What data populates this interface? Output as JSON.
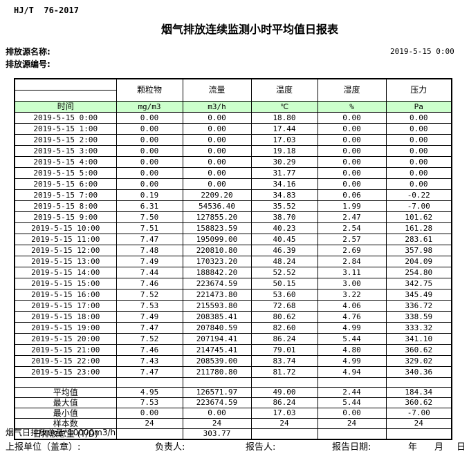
{
  "page": {
    "standard": "HJ/T  76-2017",
    "title": "烟气排放连续监测小时平均值日报表",
    "source_name_label": "排放源名称:",
    "source_code_label": "排放源编号:",
    "datetime": "2019-5-15 0:00"
  },
  "table": {
    "time_header": "时间",
    "columns": [
      {
        "name": "颗粒物",
        "unit": "mg/m3"
      },
      {
        "name": "流量",
        "unit": "m3/h"
      },
      {
        "name": "温度",
        "unit": "℃"
      },
      {
        "name": "湿度",
        "unit": "%"
      },
      {
        "name": "压力",
        "unit": "Pa"
      }
    ],
    "rows": [
      {
        "time": "2019-5-15 0:00",
        "values": [
          "0.00",
          "0.00",
          "18.80",
          "0.00",
          "0.00"
        ]
      },
      {
        "time": "2019-5-15 1:00",
        "values": [
          "0.00",
          "0.00",
          "17.44",
          "0.00",
          "0.00"
        ]
      },
      {
        "time": "2019-5-15 2:00",
        "values": [
          "0.00",
          "0.00",
          "17.03",
          "0.00",
          "0.00"
        ]
      },
      {
        "time": "2019-5-15 3:00",
        "values": [
          "0.00",
          "0.00",
          "19.18",
          "0.00",
          "0.00"
        ]
      },
      {
        "time": "2019-5-15 4:00",
        "values": [
          "0.00",
          "0.00",
          "30.29",
          "0.00",
          "0.00"
        ]
      },
      {
        "time": "2019-5-15 5:00",
        "values": [
          "0.00",
          "0.00",
          "31.77",
          "0.00",
          "0.00"
        ]
      },
      {
        "time": "2019-5-15 6:00",
        "values": [
          "0.00",
          "0.00",
          "34.16",
          "0.00",
          "0.00"
        ]
      },
      {
        "time": "2019-5-15 7:00",
        "values": [
          "0.19",
          "2209.20",
          "34.83",
          "0.06",
          "-0.22"
        ]
      },
      {
        "time": "2019-5-15 8:00",
        "values": [
          "6.31",
          "54536.40",
          "35.52",
          "1.99",
          "-7.00"
        ]
      },
      {
        "time": "2019-5-15 9:00",
        "values": [
          "7.50",
          "127855.20",
          "38.70",
          "2.47",
          "101.62"
        ]
      },
      {
        "time": "2019-5-15 10:00",
        "values": [
          "7.51",
          "158823.59",
          "40.23",
          "2.54",
          "161.28"
        ]
      },
      {
        "time": "2019-5-15 11:00",
        "values": [
          "7.47",
          "195099.00",
          "40.45",
          "2.57",
          "283.61"
        ]
      },
      {
        "time": "2019-5-15 12:00",
        "values": [
          "7.48",
          "220810.80",
          "46.39",
          "2.69",
          "357.98"
        ]
      },
      {
        "time": "2019-5-15 13:00",
        "values": [
          "7.49",
          "170323.20",
          "48.24",
          "2.84",
          "204.09"
        ]
      },
      {
        "time": "2019-5-15 14:00",
        "values": [
          "7.44",
          "188842.20",
          "52.52",
          "3.11",
          "254.80"
        ]
      },
      {
        "time": "2019-5-15 15:00",
        "values": [
          "7.46",
          "223674.59",
          "50.15",
          "3.00",
          "342.75"
        ]
      },
      {
        "time": "2019-5-15 16:00",
        "values": [
          "7.52",
          "221473.80",
          "53.60",
          "3.22",
          "345.49"
        ]
      },
      {
        "time": "2019-5-15 17:00",
        "values": [
          "7.53",
          "215593.80",
          "72.68",
          "4.06",
          "336.72"
        ]
      },
      {
        "time": "2019-5-15 18:00",
        "values": [
          "7.49",
          "208385.41",
          "80.62",
          "4.76",
          "338.59"
        ]
      },
      {
        "time": "2019-5-15 19:00",
        "values": [
          "7.47",
          "207840.59",
          "82.60",
          "4.99",
          "333.32"
        ]
      },
      {
        "time": "2019-5-15 20:00",
        "values": [
          "7.52",
          "207194.41",
          "86.24",
          "5.44",
          "341.10"
        ]
      },
      {
        "time": "2019-5-15 21:00",
        "values": [
          "7.46",
          "214745.41",
          "79.01",
          "4.80",
          "360.62"
        ]
      },
      {
        "time": "2019-5-15 22:00",
        "values": [
          "7.43",
          "208539.00",
          "83.74",
          "4.99",
          "329.02"
        ]
      },
      {
        "time": "2019-5-15 23:00",
        "values": [
          "7.47",
          "211780.80",
          "81.72",
          "4.94",
          "340.36"
        ]
      }
    ],
    "summary_rows": [
      {
        "label": "平均值",
        "values": [
          "4.95",
          "126571.97",
          "49.00",
          "2.44",
          "184.34"
        ]
      },
      {
        "label": "最大值",
        "values": [
          "7.53",
          "223674.59",
          "86.24",
          "5.44",
          "360.62"
        ]
      },
      {
        "label": "最小值",
        "values": [
          "0.00",
          "0.00",
          "17.03",
          "0.00",
          "-7.00"
        ]
      },
      {
        "label": "样本数",
        "values": [
          "24",
          "24",
          "24",
          "24",
          "24"
        ]
      },
      {
        "label": "日排放总量 (T/D)",
        "values": [
          "",
          "303.77",
          "",
          "",
          ""
        ]
      }
    ]
  },
  "footer": {
    "note": "烟气日排放总量*10000m3/h",
    "report_unit_label": "上报单位（盖章）:",
    "responsible_label": "负责人:",
    "reporter_label": "报告人:",
    "report_date_label": "报告日期:",
    "year_label": "年",
    "month_label": "月",
    "day_label": "日"
  },
  "colors": {
    "header_row_green": "#ccffcc"
  }
}
